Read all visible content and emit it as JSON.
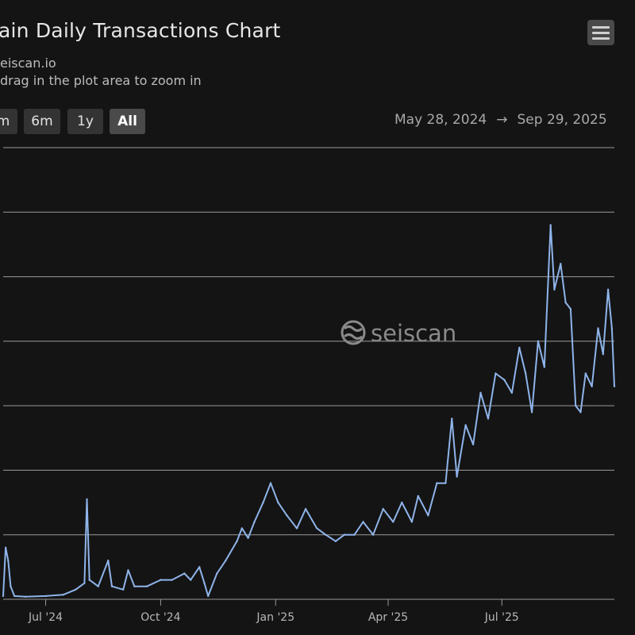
{
  "header": {
    "title": "ain Daily Transactions Chart",
    "source": "eiscan.io",
    "hint": "drag in the plot area to zoom in"
  },
  "toolbar": {
    "menu_icon": "hamburger-menu-icon",
    "range_buttons": [
      {
        "label": "m",
        "active": false
      },
      {
        "label": "6m",
        "active": false
      },
      {
        "label": "1y",
        "active": false
      },
      {
        "label": "All",
        "active": true
      }
    ],
    "date_from": "May 28, 2024",
    "arrow": "→",
    "date_to": "Sep 29, 2025"
  },
  "watermark": {
    "text": "seiscan",
    "icon": "seiscan-logo-icon"
  },
  "colors": {
    "line": "#8fb4ea",
    "grid": "#9a9a9a",
    "background": "#141414"
  },
  "chart_data": {
    "type": "line",
    "xlabel": "",
    "ylabel": "",
    "x_ticks": [
      {
        "label": "Jul '24",
        "date": "2024-07-01"
      },
      {
        "label": "Oct '24",
        "date": "2024-10-01"
      },
      {
        "label": "Jan '25",
        "date": "2025-01-01"
      },
      {
        "label": "Apr '25",
        "date": "2025-04-01"
      },
      {
        "label": "Jul '25",
        "date": "2025-07-01"
      }
    ],
    "xlim": [
      "2024-05-28",
      "2025-09-29"
    ],
    "ylim": [
      0,
      7
    ],
    "y_gridlines": [
      0,
      1,
      2,
      3,
      4,
      5,
      6,
      7
    ],
    "series": [
      {
        "points": [
          [
            "2024-05-28",
            0.05
          ],
          [
            "2024-05-30",
            0.8
          ],
          [
            "2024-06-01",
            0.6
          ],
          [
            "2024-06-03",
            0.2
          ],
          [
            "2024-06-06",
            0.05
          ],
          [
            "2024-06-15",
            0.04
          ],
          [
            "2024-07-01",
            0.05
          ],
          [
            "2024-07-15",
            0.07
          ],
          [
            "2024-07-25",
            0.15
          ],
          [
            "2024-08-01",
            0.25
          ],
          [
            "2024-08-03",
            1.55
          ],
          [
            "2024-08-05",
            0.3
          ],
          [
            "2024-08-12",
            0.2
          ],
          [
            "2024-08-20",
            0.6
          ],
          [
            "2024-08-23",
            0.2
          ],
          [
            "2024-09-01",
            0.15
          ],
          [
            "2024-09-05",
            0.45
          ],
          [
            "2024-09-10",
            0.2
          ],
          [
            "2024-09-20",
            0.2
          ],
          [
            "2024-10-01",
            0.3
          ],
          [
            "2024-10-10",
            0.3
          ],
          [
            "2024-10-20",
            0.4
          ],
          [
            "2024-10-25",
            0.3
          ],
          [
            "2024-11-01",
            0.5
          ],
          [
            "2024-11-05",
            0.25
          ],
          [
            "2024-11-08",
            0.05
          ],
          [
            "2024-11-15",
            0.4
          ],
          [
            "2024-11-22",
            0.6
          ],
          [
            "2024-12-01",
            0.9
          ],
          [
            "2024-12-05",
            1.1
          ],
          [
            "2024-12-10",
            0.95
          ],
          [
            "2024-12-15",
            1.2
          ],
          [
            "2024-12-22",
            1.5
          ],
          [
            "2024-12-28",
            1.8
          ],
          [
            "2025-01-03",
            1.5
          ],
          [
            "2025-01-10",
            1.3
          ],
          [
            "2025-01-18",
            1.1
          ],
          [
            "2025-01-25",
            1.4
          ],
          [
            "2025-02-03",
            1.1
          ],
          [
            "2025-02-10",
            1.0
          ],
          [
            "2025-02-18",
            0.9
          ],
          [
            "2025-02-25",
            1.0
          ],
          [
            "2025-03-05",
            1.0
          ],
          [
            "2025-03-12",
            1.2
          ],
          [
            "2025-03-20",
            1.0
          ],
          [
            "2025-03-28",
            1.4
          ],
          [
            "2025-04-05",
            1.2
          ],
          [
            "2025-04-12",
            1.5
          ],
          [
            "2025-04-20",
            1.2
          ],
          [
            "2025-04-25",
            1.6
          ],
          [
            "2025-05-03",
            1.3
          ],
          [
            "2025-05-10",
            1.8
          ],
          [
            "2025-05-17",
            1.8
          ],
          [
            "2025-05-22",
            2.8
          ],
          [
            "2025-05-26",
            1.9
          ],
          [
            "2025-06-02",
            2.7
          ],
          [
            "2025-06-08",
            2.4
          ],
          [
            "2025-06-14",
            3.2
          ],
          [
            "2025-06-20",
            2.8
          ],
          [
            "2025-06-26",
            3.5
          ],
          [
            "2025-07-03",
            3.4
          ],
          [
            "2025-07-09",
            3.2
          ],
          [
            "2025-07-15",
            3.9
          ],
          [
            "2025-07-20",
            3.5
          ],
          [
            "2025-07-25",
            2.9
          ],
          [
            "2025-07-30",
            4.0
          ],
          [
            "2025-08-04",
            3.6
          ],
          [
            "2025-08-09",
            5.8
          ],
          [
            "2025-08-12",
            4.8
          ],
          [
            "2025-08-17",
            5.2
          ],
          [
            "2025-08-21",
            4.6
          ],
          [
            "2025-08-25",
            4.5
          ],
          [
            "2025-08-29",
            3.0
          ],
          [
            "2025-09-02",
            2.9
          ],
          [
            "2025-09-06",
            3.5
          ],
          [
            "2025-09-11",
            3.3
          ],
          [
            "2025-09-16",
            4.2
          ],
          [
            "2025-09-20",
            3.8
          ],
          [
            "2025-09-24",
            4.8
          ],
          [
            "2025-09-27",
            4.2
          ],
          [
            "2025-09-29",
            3.3
          ]
        ]
      }
    ]
  }
}
